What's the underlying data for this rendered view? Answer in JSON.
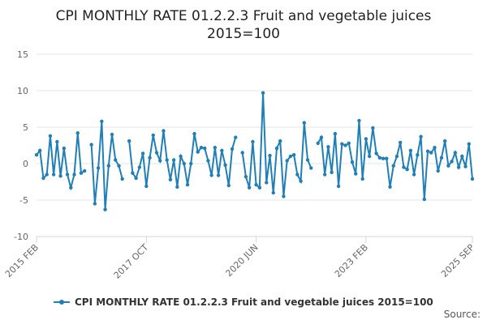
{
  "chart_data": {
    "type": "line",
    "title": "CPI MONTHLY RATE 01.2.2.3 Fruit and vegetable juices",
    "subtitle": "2015=100",
    "xlabel": "",
    "ylabel": "",
    "ylim": [
      -10,
      15
    ],
    "y_ticks": [
      "15",
      "10",
      "5",
      "0",
      "-5",
      "-10"
    ],
    "x_ticks": [
      "2015 FEB",
      "2017 OCT",
      "2020 JUN",
      "2023 FEB",
      "2025 SEP"
    ],
    "grid": true,
    "legend": "bottom-center",
    "start": "2015 FEB",
    "series": [
      {
        "name": "CPI MONTHLY RATE 01.2.2.3 Fruit and vegetable juices 2015=100",
        "color": "#1f7fb6",
        "values": [
          1.2,
          1.8,
          -2.0,
          -1.5,
          3.8,
          -1.5,
          3.0,
          -1.7,
          2.1,
          -1.5,
          -3.3,
          -1.5,
          4.2,
          -1.3,
          -1.0,
          null,
          2.6,
          -5.5,
          -0.6,
          5.8,
          -6.3,
          -0.3,
          4.0,
          0.5,
          -0.3,
          -2.1,
          null,
          3.1,
          -1.3,
          -2.0,
          -0.5,
          1.4,
          -3.1,
          0.8,
          3.9,
          1.5,
          0.4,
          4.5,
          0.5,
          -2.2,
          0.5,
          -3.2,
          1.0,
          0.0,
          -2.9,
          0.0,
          4.1,
          1.6,
          2.2,
          2.1,
          0.4,
          -1.6,
          2.2,
          -1.6,
          1.8,
          -0.2,
          -3.0,
          2.0,
          3.6,
          null,
          1.5,
          -1.8,
          -3.3,
          3.0,
          -2.9,
          -3.3,
          9.7,
          -2.6,
          1.1,
          -4.0,
          2.1,
          3.1,
          -4.5,
          0.4,
          1.0,
          1.2,
          -1.5,
          -2.4,
          5.6,
          0.5,
          -0.6,
          null,
          2.8,
          3.6,
          -1.5,
          2.3,
          -1.2,
          4.1,
          -3.1,
          2.7,
          2.5,
          2.8,
          0.2,
          -1.4,
          5.9,
          -2.1,
          3.4,
          1.0,
          4.9,
          1.4,
          0.8,
          0.7,
          0.7,
          -3.2,
          -0.3,
          1.0,
          2.9,
          -0.5,
          -0.8,
          1.8,
          -1.5,
          1.2,
          3.7,
          -4.9,
          1.7,
          1.5,
          2.2,
          -1.0,
          0.8,
          3.1,
          -0.3,
          0.3,
          1.5,
          -0.5,
          1.0,
          -0.4,
          2.7,
          -2.1
        ]
      }
    ]
  },
  "footer": {
    "source_label": "Source:"
  }
}
